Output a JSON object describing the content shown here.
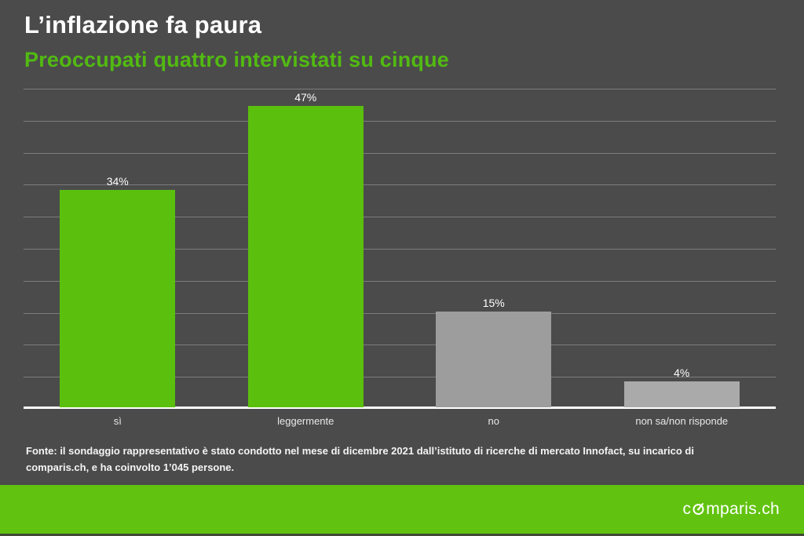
{
  "header": {
    "title": "L’inflazione fa paura",
    "subtitle": "Preoccupati quattro intervistati su cinque"
  },
  "chart_data": {
    "type": "bar",
    "categories": [
      "sì",
      "leggermente",
      "no",
      "non sa/non risponde"
    ],
    "values": [
      34,
      47,
      15,
      4
    ],
    "value_labels": [
      "34%",
      "47%",
      "15%",
      "4%"
    ],
    "bar_colors": [
      "#5bbf0e",
      "#5bbf0e",
      "#9d9d9d",
      "#aaaaaa"
    ],
    "title": "L’inflazione fa paura",
    "subtitle": "Preoccupati quattro intervistati su cinque",
    "xlabel": "",
    "ylabel": "",
    "ylim": [
      0,
      50
    ],
    "gridline_step": 5,
    "grid": true,
    "legend": "none"
  },
  "footer": {
    "source_text": "Fonte: il sondaggio rappresentativo è stato condotto nel mese di dicembre 2021 dall’istituto di ricerche di mercato Innofact, su incarico di comparis.ch, e ha coinvolto 1’045 persone."
  },
  "branding": {
    "logo_full": "comparis.ch",
    "logo_text_pre": "c",
    "logo_text_post": "mparis.ch",
    "logo_o_icon": "gauge-icon"
  },
  "colors": {
    "background": "#4b4b4b",
    "title_text": "#ffffff",
    "subtitle_green": "#52ba12",
    "bar_green": "#5bbf0e",
    "bar_gray": "#9d9d9d",
    "bar_light_gray": "#aaaaaa",
    "footer_green": "#61c30f",
    "axis_line": "#ffffff",
    "gridline": "rgba(255,255,255,0.28)",
    "value_label_text": "#ffffff",
    "category_label_text": "#e8e8e8",
    "source_text": "#f4f4f4"
  }
}
